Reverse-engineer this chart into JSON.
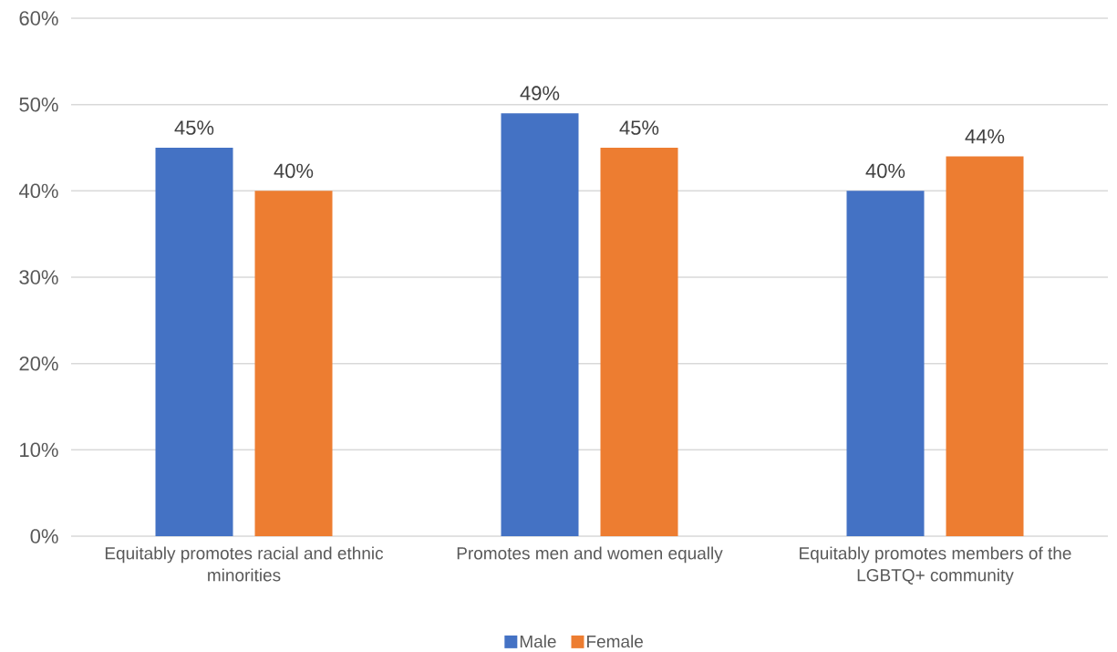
{
  "chart_data": {
    "type": "bar",
    "categories": [
      "Equitably promotes racial and ethnic minorities",
      "Promotes men and women equally",
      "Equitably promotes members of the LGBTQ+ community"
    ],
    "series": [
      {
        "name": "Male",
        "color": "#4472c4",
        "values": [
          45,
          49,
          40
        ],
        "value_labels": [
          "45%",
          "49%",
          "40%"
        ]
      },
      {
        "name": "Female",
        "color": "#ed7d31",
        "values": [
          40,
          45,
          44
        ],
        "value_labels": [
          "40%",
          "45%",
          "44%"
        ]
      }
    ],
    "ylim": [
      0,
      60
    ],
    "yticks": [
      {
        "value": 0,
        "label": "0%"
      },
      {
        "value": 10,
        "label": "10%"
      },
      {
        "value": 20,
        "label": "20%"
      },
      {
        "value": 30,
        "label": "30%"
      },
      {
        "value": 40,
        "label": "40%"
      },
      {
        "value": 50,
        "label": "50%"
      },
      {
        "value": 60,
        "label": "60%"
      }
    ],
    "grid": "y",
    "legend": "bottom"
  }
}
